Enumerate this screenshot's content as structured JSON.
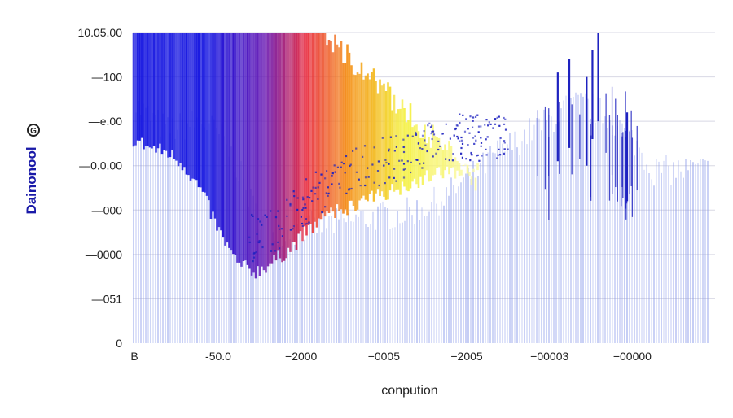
{
  "chart_data": {
    "type": "bar",
    "title": "",
    "xlabel": "conpution",
    "ylabel": "Dainonool",
    "ylabel_icon": "G",
    "yticks": [
      "10.05.00",
      "—100",
      "—e.00",
      "—0.0.00",
      "—000",
      "—0000",
      "—051",
      "0"
    ],
    "xticks": [
      "B",
      "-50.0",
      "−2000",
      "−0005",
      "−2005",
      "−00003",
      "−00000"
    ],
    "ylim": [
      0,
      7
    ],
    "grid": "horizontal",
    "colors": {
      "bars_light": "#8898ea",
      "bars_dark": "#1e22c0",
      "heat_blue": "#1414e0",
      "heat_purple": "#6a1cb4",
      "heat_red": "#e8283c",
      "heat_orange": "#f49018",
      "heat_yellow": "#f4f040",
      "grid": "#d8d8e4"
    },
    "profiles": {
      "x": [
        0,
        0.03,
        0.06,
        0.09,
        0.12,
        0.15,
        0.18,
        0.21,
        0.24,
        0.27,
        0.3,
        0.33,
        0.36,
        0.39,
        0.42,
        0.45,
        0.48,
        0.51,
        0.54,
        0.57,
        0.6,
        0.63,
        0.66,
        0.69,
        0.72,
        0.75,
        0.78,
        0.81,
        0.84,
        0.87,
        0.9,
        0.93,
        0.96,
        1.0
      ],
      "light_bars": [
        5.4,
        5.1,
        4.8,
        4.9,
        5.0,
        4.7,
        4.0,
        3.0,
        2.6,
        2.5,
        2.6,
        2.7,
        2.7,
        2.8,
        2.85,
        2.9,
        2.95,
        3.1,
        3.3,
        3.6,
        3.9,
        4.3,
        4.5,
        4.8,
        5.0,
        5.3,
        5.4,
        5.2,
        4.9,
        4.5,
        3.9,
        3.9,
        3.9,
        3.9
      ],
      "heat_bottom": [
        4.6,
        4.4,
        4.3,
        4.0,
        3.4,
        2.5,
        1.8,
        1.6,
        1.8,
        2.1,
        2.5,
        2.8,
        3.0,
        3.15,
        3.3,
        3.45,
        3.6,
        3.75,
        3.85,
        3.9,
        3.9,
        3.95,
        4.0
      ]
    },
    "peaks": [
      {
        "x": 0.735,
        "y": 6.1
      },
      {
        "x": 0.755,
        "y": 6.4
      },
      {
        "x": 0.785,
        "y": 6.0
      },
      {
        "x": 0.795,
        "y": 6.6
      },
      {
        "x": 0.805,
        "y": 7.0
      },
      {
        "x": 0.855,
        "y": 5.2
      }
    ]
  }
}
